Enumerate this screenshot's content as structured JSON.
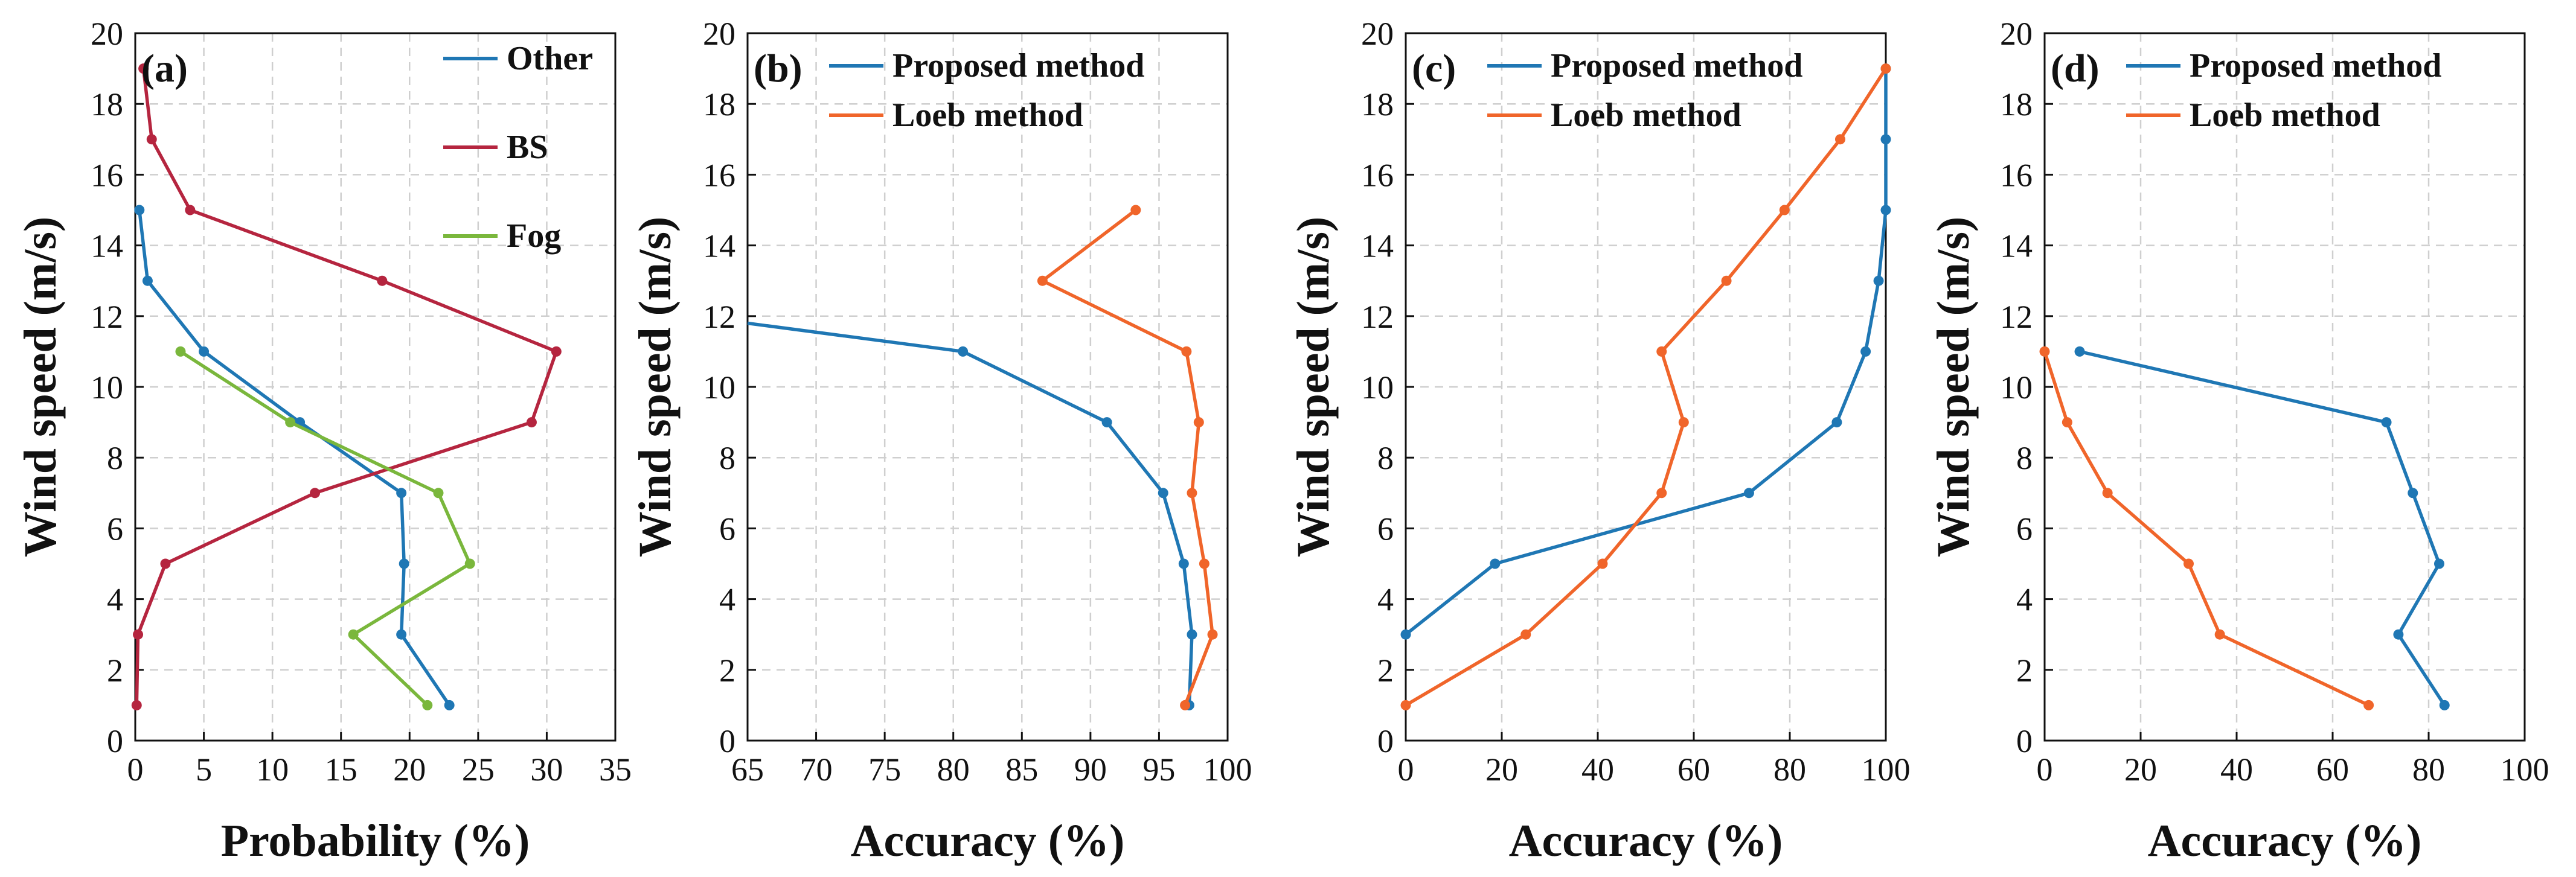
{
  "colors": {
    "blue": "#1f77b4",
    "orange": "#f0652a",
    "red": "#b5253f",
    "green": "#7ab73c"
  },
  "chart_data": [
    {
      "type": "line",
      "panel": "(a)",
      "xlabel": "Probability (%)",
      "ylabel": "Wind speed (m/s)",
      "xlim": [
        0,
        35
      ],
      "ylim": [
        0,
        20
      ],
      "xticks": [
        0,
        5,
        10,
        15,
        20,
        25,
        30,
        35
      ],
      "yticks": [
        0,
        2,
        4,
        6,
        8,
        10,
        12,
        14,
        16,
        18,
        20
      ],
      "legend_position": "top-right",
      "series": [
        {
          "name": "Other",
          "color": "#1f77b4",
          "x": [
            22.9,
            19.4,
            19.6,
            19.4,
            12.0,
            5.0,
            0.9,
            0.3
          ],
          "y": [
            1,
            3,
            5,
            7,
            9,
            11,
            13,
            15
          ]
        },
        {
          "name": "BS",
          "color": "#b5253f",
          "x": [
            0.1,
            0.2,
            2.2,
            13.1,
            28.9,
            30.7,
            18.0,
            4.0,
            1.2,
            0.6
          ],
          "y": [
            1,
            3,
            5,
            7,
            9,
            11,
            13,
            15,
            17,
            19
          ]
        },
        {
          "name": "Fog",
          "color": "#7ab73c",
          "x": [
            21.3,
            15.9,
            24.4,
            22.1,
            11.3,
            3.3
          ],
          "y": [
            1,
            3,
            5,
            7,
            9,
            11
          ]
        }
      ]
    },
    {
      "type": "line",
      "panel": "(b)",
      "xlabel": "Accuracy (%)",
      "ylabel": "Wind speed (m/s)",
      "xlim": [
        65,
        100
      ],
      "ylim": [
        0,
        20
      ],
      "xticks": [
        65,
        70,
        75,
        80,
        85,
        90,
        95,
        100
      ],
      "yticks": [
        0,
        2,
        4,
        6,
        8,
        10,
        12,
        14,
        16,
        18,
        20
      ],
      "legend_position": "top-left",
      "series": [
        {
          "name": "Proposed method",
          "color": "#1f77b4",
          "x": [
            97.2,
            97.4,
            96.8,
            95.3,
            91.2,
            80.7,
            65.0
          ],
          "y": [
            1,
            3,
            5,
            7,
            9,
            11,
            11.8
          ]
        },
        {
          "name": "Loeb method",
          "color": "#f0652a",
          "x": [
            96.9,
            98.9,
            98.3,
            97.4,
            97.9,
            97.0,
            86.5,
            93.3
          ],
          "y": [
            1,
            3,
            5,
            7,
            9,
            11,
            13,
            15
          ]
        }
      ]
    },
    {
      "type": "line",
      "panel": "(c)",
      "xlabel": "Accuracy (%)",
      "ylabel": "Wind speed (m/s)",
      "xlim": [
        0,
        100
      ],
      "ylim": [
        0,
        20
      ],
      "xticks": [
        0,
        20,
        40,
        60,
        80,
        100
      ],
      "yticks": [
        0,
        2,
        4,
        6,
        8,
        10,
        12,
        14,
        16,
        18,
        20
      ],
      "legend_position": "top-left",
      "series": [
        {
          "name": "Proposed method",
          "color": "#1f77b4",
          "x": [
            0.0,
            18.6,
            71.5,
            89.8,
            95.8,
            98.5,
            100,
            100,
            100
          ],
          "y": [
            3,
            5,
            7,
            9,
            11,
            13,
            15,
            17,
            19
          ]
        },
        {
          "name": "Loeb method",
          "color": "#f0652a",
          "x": [
            0.0,
            25.0,
            41.0,
            53.3,
            57.9,
            53.3,
            66.8,
            78.9,
            90.5,
            100
          ],
          "y": [
            1,
            3,
            5,
            7,
            9,
            11,
            13,
            15,
            17,
            19
          ]
        }
      ]
    },
    {
      "type": "line",
      "panel": "(d)",
      "xlabel": "Accuracy (%)",
      "ylabel": "Wind speed (m/s)",
      "xlim": [
        0,
        100
      ],
      "ylim": [
        0,
        20
      ],
      "xticks": [
        0,
        20,
        40,
        60,
        80,
        100
      ],
      "yticks": [
        0,
        2,
        4,
        6,
        8,
        10,
        12,
        14,
        16,
        18,
        20
      ],
      "legend_position": "top-left",
      "series": [
        {
          "name": "Proposed method",
          "color": "#1f77b4",
          "x": [
            83.3,
            73.7,
            82.2,
            76.7,
            71.2,
            7.3
          ],
          "y": [
            1,
            3,
            5,
            7,
            9,
            11
          ]
        },
        {
          "name": "Loeb method",
          "color": "#f0652a",
          "x": [
            67.5,
            36.5,
            30.0,
            13.1,
            4.7,
            0.0
          ],
          "y": [
            1,
            3,
            5,
            7,
            9,
            11
          ]
        }
      ]
    }
  ]
}
